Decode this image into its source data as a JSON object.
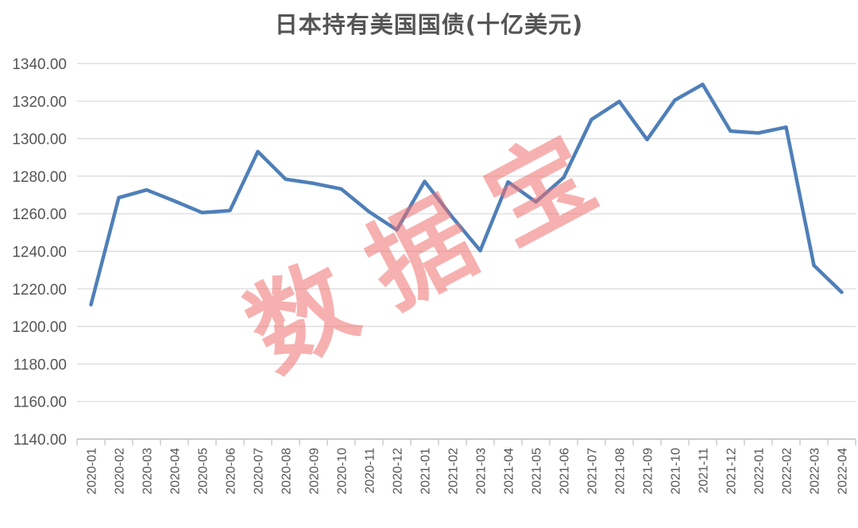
{
  "chart_data": {
    "type": "line",
    "title": "日本持有美国国债(十亿美元)",
    "xlabel": "",
    "ylabel": "",
    "ylim": [
      1140,
      1340
    ],
    "yticks": [
      "1140.00",
      "1160.00",
      "1180.00",
      "1200.00",
      "1220.00",
      "1240.00",
      "1260.00",
      "1280.00",
      "1300.00",
      "1320.00",
      "1340.00"
    ],
    "grid": true,
    "legend": "none",
    "series_color": "#4f7fb8",
    "categories": [
      "2020-01",
      "2020-02",
      "2020-03",
      "2020-04",
      "2020-05",
      "2020-06",
      "2020-07",
      "2020-08",
      "2020-09",
      "2020-10",
      "2020-11",
      "2020-12",
      "2021-01",
      "2021-02",
      "2021-03",
      "2021-04",
      "2021-05",
      "2021-06",
      "2021-07",
      "2021-08",
      "2021-09",
      "2021-10",
      "2021-11",
      "2021-12",
      "2022-01",
      "2022-02",
      "2022-03",
      "2022-04"
    ],
    "values": [
      1211.6,
      1268.6,
      1272.7,
      1266.8,
      1260.6,
      1261.7,
      1293.1,
      1278.4,
      1276.2,
      1273.2,
      1261.1,
      1251.4,
      1277.2,
      1258.1,
      1240.4,
      1276.9,
      1266.3,
      1279.3,
      1310.2,
      1319.8,
      1299.5,
      1320.5,
      1328.9,
      1304.0,
      1303.0,
      1306.1,
      1232.5,
      1218.2
    ]
  },
  "watermark": {
    "text": "数据宝",
    "color": "#f07070"
  }
}
